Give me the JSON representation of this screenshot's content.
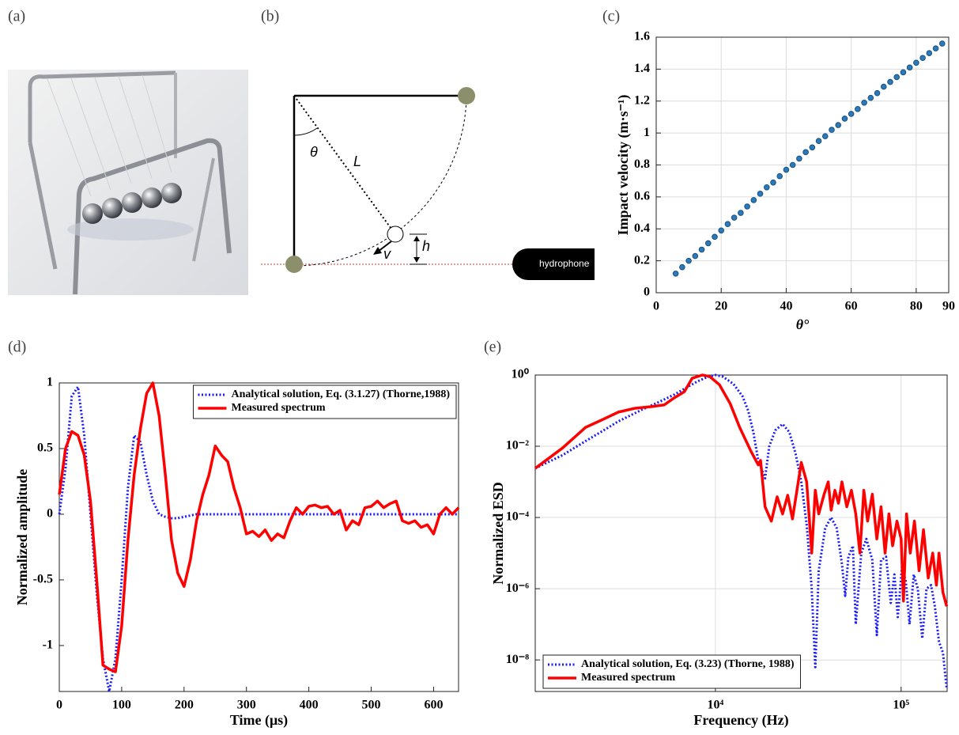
{
  "panel_labels": [
    "(a)",
    "(b)",
    "(c)",
    "(d)",
    "(e)"
  ],
  "diagram": {
    "labels": {
      "angle": "θ",
      "length": "L",
      "velocity": "v",
      "height": "h",
      "sensor": "hydrophone"
    }
  },
  "chart_data": [
    {
      "type": "scatter",
      "ylabel": "Impact velocity (m·s⁻¹)",
      "xlabel": "θ°",
      "x": [
        6,
        8,
        10,
        12,
        14,
        16,
        18,
        20,
        22,
        24,
        26,
        28,
        30,
        32,
        34,
        36,
        38,
        40,
        42,
        44,
        46,
        48,
        50,
        52,
        54,
        56,
        58,
        60,
        62,
        64,
        66,
        68,
        70,
        72,
        74,
        76,
        78,
        80,
        82,
        84,
        86,
        88
      ],
      "values": [
        0.12,
        0.16,
        0.2,
        0.23,
        0.27,
        0.31,
        0.35,
        0.39,
        0.43,
        0.47,
        0.5,
        0.54,
        0.58,
        0.62,
        0.66,
        0.69,
        0.73,
        0.77,
        0.8,
        0.84,
        0.88,
        0.91,
        0.95,
        0.98,
        1.02,
        1.05,
        1.09,
        1.12,
        1.15,
        1.19,
        1.22,
        1.25,
        1.29,
        1.32,
        1.35,
        1.38,
        1.41,
        1.44,
        1.47,
        1.5,
        1.53,
        1.56
      ],
      "color": "#2b7bba",
      "xlim": [
        0,
        90
      ],
      "xticks": [
        0,
        20,
        40,
        60,
        80,
        90
      ],
      "ylim": [
        0,
        1.6
      ],
      "yticks": [
        0,
        0.2,
        0.4,
        0.6,
        0.8,
        1,
        1.2,
        1.4,
        1.6
      ],
      "grid": true
    },
    {
      "type": "line",
      "xlabel": "Time (μs)",
      "ylabel": "Normalized amplitude",
      "legend": "upper right",
      "grid": false,
      "x": [
        0,
        10,
        20,
        30,
        40,
        50,
        60,
        70,
        80,
        90,
        100,
        110,
        120,
        130,
        140,
        150,
        160,
        170,
        180,
        190,
        200,
        210,
        220,
        230,
        240,
        250,
        260,
        270,
        280,
        290,
        300,
        310,
        320,
        330,
        340,
        350,
        360,
        370,
        380,
        390,
        400,
        410,
        420,
        430,
        440,
        450,
        460,
        470,
        480,
        490,
        500,
        510,
        520,
        530,
        540,
        550,
        560,
        570,
        580,
        590,
        600,
        610,
        620,
        630,
        640
      ],
      "series": [
        {
          "name": "Analytical solution, Eq. (3.1.27) (Thorne,1988)",
          "color": "#1a1aff",
          "style": "dotted",
          "values": [
            0,
            0.35,
            0.9,
            0.97,
            0.6,
            0,
            -0.6,
            -1.1,
            -1.35,
            -1.1,
            -0.5,
            0.2,
            0.6,
            0.55,
            0.3,
            0.1,
            0,
            -0.02,
            -0.03,
            -0.03,
            -0.02,
            -0.01,
            0,
            0,
            0,
            0,
            0,
            0,
            0,
            0,
            0,
            0,
            0,
            0,
            0,
            0,
            0,
            0,
            0,
            0,
            0,
            0,
            0,
            0,
            0,
            0,
            0,
            0,
            0,
            0,
            0,
            0,
            0,
            0,
            0,
            0,
            0,
            0,
            0,
            0,
            0,
            0,
            0,
            0,
            0
          ]
        },
        {
          "name": "Measured spectrum",
          "color": "#ff0000",
          "style": "solid",
          "values": [
            0.15,
            0.5,
            0.63,
            0.6,
            0.45,
            0.1,
            -0.5,
            -1.15,
            -1.18,
            -1.2,
            -0.85,
            -0.2,
            0.3,
            0.65,
            0.92,
            1,
            0.75,
            0.3,
            -0.2,
            -0.45,
            -0.55,
            -0.35,
            -0.05,
            0.15,
            0.3,
            0.52,
            0.45,
            0.4,
            0.2,
            0.05,
            -0.15,
            -0.13,
            -0.17,
            -0.12,
            -0.2,
            -0.15,
            -0.18,
            -0.05,
            0.05,
            0,
            0.06,
            0.07,
            0.05,
            0.06,
            0,
            0.03,
            -0.12,
            -0.05,
            -0.08,
            0.05,
            0.06,
            0.1,
            0.05,
            0.08,
            0.1,
            -0.05,
            -0.07,
            -0.05,
            -0.1,
            -0.08,
            -0.15,
            0,
            0.05,
            0,
            0.05
          ]
        }
      ],
      "xlim": [
        0,
        640
      ],
      "xticks": [
        0,
        100,
        200,
        300,
        400,
        500,
        600
      ],
      "ylim": [
        -1.35,
        1
      ],
      "yticks": [
        -1,
        -0.5,
        0,
        0.5,
        1
      ]
    },
    {
      "type": "line",
      "xlabel": "Frequency (Hz)",
      "ylabel": "Normalized ESD",
      "legend": "lower left",
      "grid": true,
      "xscale": "log",
      "yscale": "log",
      "series": [
        {
          "name": "Analytical solution, Eq. (3.23) (Thorne, 1988)",
          "color": "#1a1aff",
          "style": "dotted",
          "x": [
            1070,
            1500,
            2000,
            2500,
            3000,
            4000,
            5000,
            6000,
            7000,
            8000,
            9000,
            10000,
            11000,
            12500,
            14000,
            15000,
            16000,
            17000,
            18500,
            19500,
            21000,
            23000,
            25000,
            27000,
            29000,
            31000,
            33000,
            34500,
            36000,
            39000,
            42000,
            45000,
            48000,
            50000,
            52000,
            55000,
            57000,
            61000,
            65000,
            70000,
            74000,
            78000,
            83000,
            88000,
            92000,
            96000,
            101000,
            106000,
            111000,
            117000,
            123000,
            130000,
            137000,
            145000,
            152000,
            160000,
            168000,
            176000
          ],
          "values": [
            0.0024,
            0.0056,
            0.014,
            0.028,
            0.05,
            0.105,
            0.178,
            0.282,
            0.447,
            0.661,
            0.871,
            1,
            0.891,
            0.562,
            0.251,
            0.1,
            0.025,
            0.004,
            0.00126,
            0.01,
            0.028,
            0.042,
            0.025,
            0.0063,
            0.001,
            6.3e-05,
            1e-06,
            6.3e-09,
            3.2e-06,
            5e-05,
            0.0001,
            5e-05,
            5e-06,
            6.3e-07,
            7.9e-06,
            1.6e-05,
            1e-07,
            1e-05,
            2.5e-05,
            6.3e-06,
            5e-08,
            6.3e-06,
            7.9e-06,
            4e-07,
            2.5e-06,
            1.6e-07,
            4e-06,
            1.6e-06,
            1e-07,
            2.5e-06,
            1e-06,
            4e-08,
            1e-06,
            1.26e-06,
            3.2e-07,
            3.2e-08,
            1.6e-08,
            1.6e-09
          ]
        },
        {
          "name": "Measured spectrum",
          "color": "#ff0000",
          "style": "solid",
          "x": [
            1070,
            1500,
            2000,
            2500,
            3000,
            3700,
            4500,
            5300,
            6000,
            6800,
            7500,
            8500,
            9300,
            10500,
            12000,
            13500,
            15500,
            17000,
            17500,
            18500,
            20000,
            21500,
            23000,
            24500,
            26000,
            29000,
            31000,
            33000,
            34500,
            36000,
            38500,
            40500,
            42000,
            44000,
            46000,
            48000,
            51000,
            54000,
            57000,
            60000,
            63000,
            66000,
            70000,
            74000,
            78000,
            82000,
            86000,
            90000,
            95000,
            100000,
            103000,
            107000,
            112000,
            118000,
            125000,
            132000,
            140000,
            148000,
            155000,
            160000,
            168000,
            176000
          ],
          "values": [
            0.0024,
            0.0089,
            0.034,
            0.058,
            0.091,
            0.117,
            0.129,
            0.145,
            0.229,
            0.339,
            0.813,
            1,
            0.912,
            0.537,
            0.158,
            0.034,
            0.0074,
            0.003,
            0.004,
            0.0002,
            7.9e-05,
            0.00038,
            0.000126,
            0.00042,
            9.1e-05,
            0.0035,
            0.001,
            1e-05,
            0.00058,
            0.000126,
            0.00045,
            0.001,
            0.00016,
            0.00058,
            0.00025,
            0.001,
            0.0002,
            0.00058,
            0.000126,
            1e-05,
            0.00058,
            7.9e-05,
            0.00045,
            2.5e-05,
            0.0002,
            1e-05,
            0.000126,
            1.6e-05,
            7.9e-05,
            2.5e-05,
            4.5e-07,
            0.000126,
            1e-05,
            7.9e-05,
            3.2e-06,
            4.5e-05,
            2e-06,
            1e-05,
            1.26e-06,
            1e-05,
            7.9e-07,
            3.2e-07
          ]
        }
      ],
      "xlim": [
        1070,
        177000
      ],
      "xticks": [
        {
          "value": 10000,
          "label": "10⁴"
        },
        {
          "value": 100000,
          "label": "10⁵"
        }
      ],
      "ylim": [
        1.3e-09,
        1
      ],
      "yticks": [
        {
          "value": 1e-08,
          "label": "10⁻⁸"
        },
        {
          "value": 1e-06,
          "label": "10⁻⁶"
        },
        {
          "value": 0.0001,
          "label": "10⁻⁴"
        },
        {
          "value": 0.01,
          "label": "10⁻²"
        },
        {
          "value": 1,
          "label": "10⁰"
        }
      ]
    }
  ]
}
